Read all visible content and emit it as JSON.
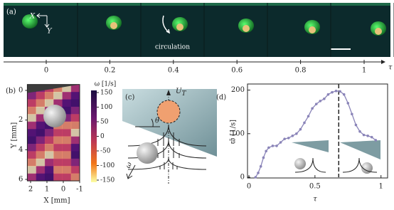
{
  "figure": {
    "a": {
      "panel_label": "(a)",
      "x_label": "X",
      "y_label": "Y",
      "circulation": "circulation",
      "axis_label": "τ",
      "ticks": [
        0,
        0.2,
        0.4,
        0.6,
        0.8,
        1
      ]
    },
    "b": {
      "panel_label": "(b)",
      "colorbar_title": "ω [1/s]",
      "colorbar_ticks": [
        150,
        100,
        50,
        0,
        -50,
        -100,
        -150
      ],
      "colorbar_lim": [
        -150,
        150
      ],
      "ylabel": "Y [mm]",
      "yticks": [
        0,
        2,
        4,
        6
      ],
      "ylim": [
        -0.4,
        6.1
      ],
      "xlabel": "X [mm]",
      "xticks": [
        2,
        1,
        0,
        -1
      ],
      "xlim": [
        2.2,
        -1.0
      ]
    },
    "c": {
      "panel_label": "(c)",
      "velocity": "U",
      "velocity_sub": "T",
      "angle": "θ",
      "rotation": "ω"
    }
  },
  "chart_data": {
    "type": "line",
    "panel_label": "(d)",
    "xlabel": "τ",
    "ylabel": "ϖ̄ [1/s]",
    "color": "#8a84b8",
    "x": [
      0.05,
      0.07,
      0.09,
      0.11,
      0.13,
      0.15,
      0.18,
      0.21,
      0.24,
      0.27,
      0.3,
      0.33,
      0.36,
      0.39,
      0.42,
      0.45,
      0.48,
      0.51,
      0.54,
      0.57,
      0.6,
      0.63,
      0.66,
      0.69,
      0.72,
      0.75,
      0.78,
      0.81,
      0.84,
      0.87,
      0.9,
      0.93,
      0.96
    ],
    "values": [
      0,
      10,
      25,
      45,
      60,
      68,
      72,
      72,
      80,
      88,
      90,
      95,
      100,
      110,
      125,
      140,
      158,
      168,
      175,
      180,
      190,
      195,
      198,
      197,
      190,
      170,
      145,
      120,
      105,
      97,
      95,
      92,
      85
    ],
    "xlim": [
      0,
      1.05
    ],
    "ylim": [
      0,
      214
    ],
    "xticks": [
      0,
      0.5,
      1
    ],
    "yticks": [
      0,
      100,
      200
    ],
    "vline": 0.68
  }
}
